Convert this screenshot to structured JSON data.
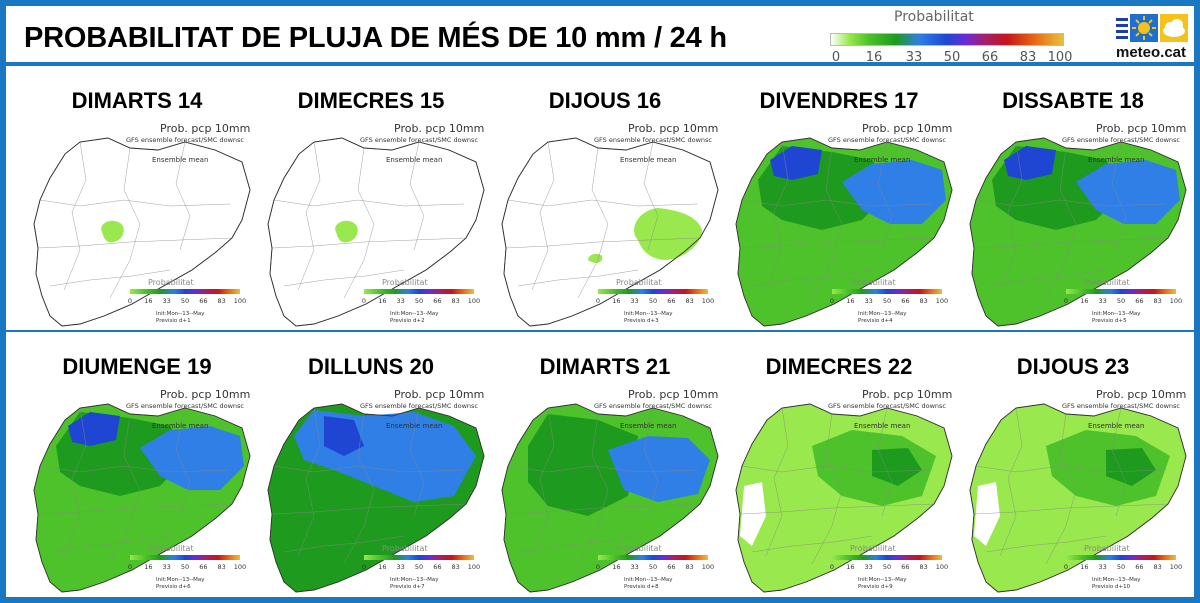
{
  "header": {
    "title": "PROBABILITAT DE PLUJA DE MÉS DE 10 mm / 24 h",
    "legend_title": "Probabilitat",
    "legend_ticks": [
      "0",
      "16",
      "33",
      "50",
      "66",
      "83",
      "100"
    ],
    "logo_text": "meteo.cat"
  },
  "colors": {
    "border": "#1a78c2",
    "prob_low": "#98e84e",
    "prob_mid": "#1e9b1e",
    "prob_high": "#2f7fe6",
    "prob_very_high": "#1f46d2"
  },
  "panel_common": {
    "prob_title": "Prob. pcp 10mm",
    "model_line": "GFS ensemble forecast/SMC downsc",
    "ensemble_label": "Ensemble mean",
    "mini_legend_title": "Probabilitat",
    "mini_ticks": [
      "0",
      "16",
      "33",
      "50",
      "66",
      "83",
      "100"
    ],
    "init_line": "Init:Mon--13--May"
  },
  "panels": [
    {
      "day": "DIMARTS 14",
      "forecast": "Previsio d+1",
      "coverage": "minimal"
    },
    {
      "day": "DIMECRES 15",
      "forecast": "Previsio d+2",
      "coverage": "minimal"
    },
    {
      "day": "DIJOUS 16",
      "forecast": "Previsio d+3",
      "coverage": "low-east"
    },
    {
      "day": "DIVENDRES 17",
      "forecast": "Previsio d+4",
      "coverage": "high-north"
    },
    {
      "day": "DISSABTE 18",
      "forecast": "Previsio d+5",
      "coverage": "high-north"
    },
    {
      "day": "DIUMENGE 19",
      "forecast": "Previsio d+6",
      "coverage": "high-north"
    },
    {
      "day": "DILLUNS 20",
      "forecast": "Previsio d+7",
      "coverage": "very-high"
    },
    {
      "day": "DIMARTS 21",
      "forecast": "Previsio d+8",
      "coverage": "high-east"
    },
    {
      "day": "DIMECRES 22",
      "forecast": "Previsio d+9",
      "coverage": "moderate"
    },
    {
      "day": "DIJOUS 23",
      "forecast": "Previsio d+10",
      "coverage": "moderate"
    }
  ]
}
